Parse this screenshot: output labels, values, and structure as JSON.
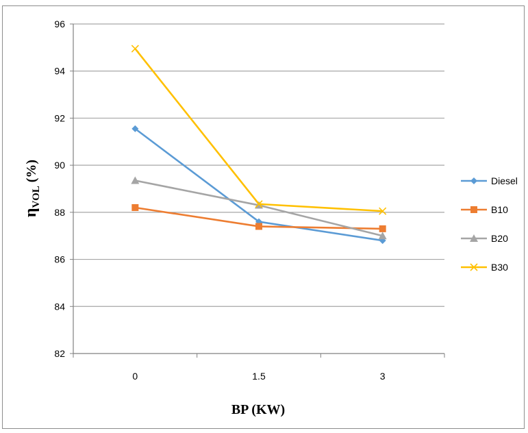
{
  "chart_data": {
    "type": "line",
    "xlabel": "BP (KW)",
    "ylabel": {
      "main": "η",
      "sub": "VOL",
      "suffix": " (%)"
    },
    "categories": [
      "0",
      "1.5",
      "3"
    ],
    "ylim": [
      82,
      96
    ],
    "yticks": [
      82,
      84,
      86,
      88,
      90,
      92,
      94,
      96
    ],
    "grid": true,
    "legend_position": "right",
    "series": [
      {
        "name": "Diesel",
        "values": [
          91.55,
          87.6,
          86.8
        ],
        "color": "#5B9BD5",
        "marker": "diamond"
      },
      {
        "name": "B10",
        "values": [
          88.2,
          87.4,
          87.3
        ],
        "color": "#ED7D31",
        "marker": "square"
      },
      {
        "name": "B20",
        "values": [
          89.35,
          88.3,
          87.0
        ],
        "color": "#A5A5A5",
        "marker": "triangle"
      },
      {
        "name": "B30",
        "values": [
          94.95,
          88.35,
          88.05
        ],
        "color": "#FFC000",
        "marker": "x"
      }
    ]
  }
}
